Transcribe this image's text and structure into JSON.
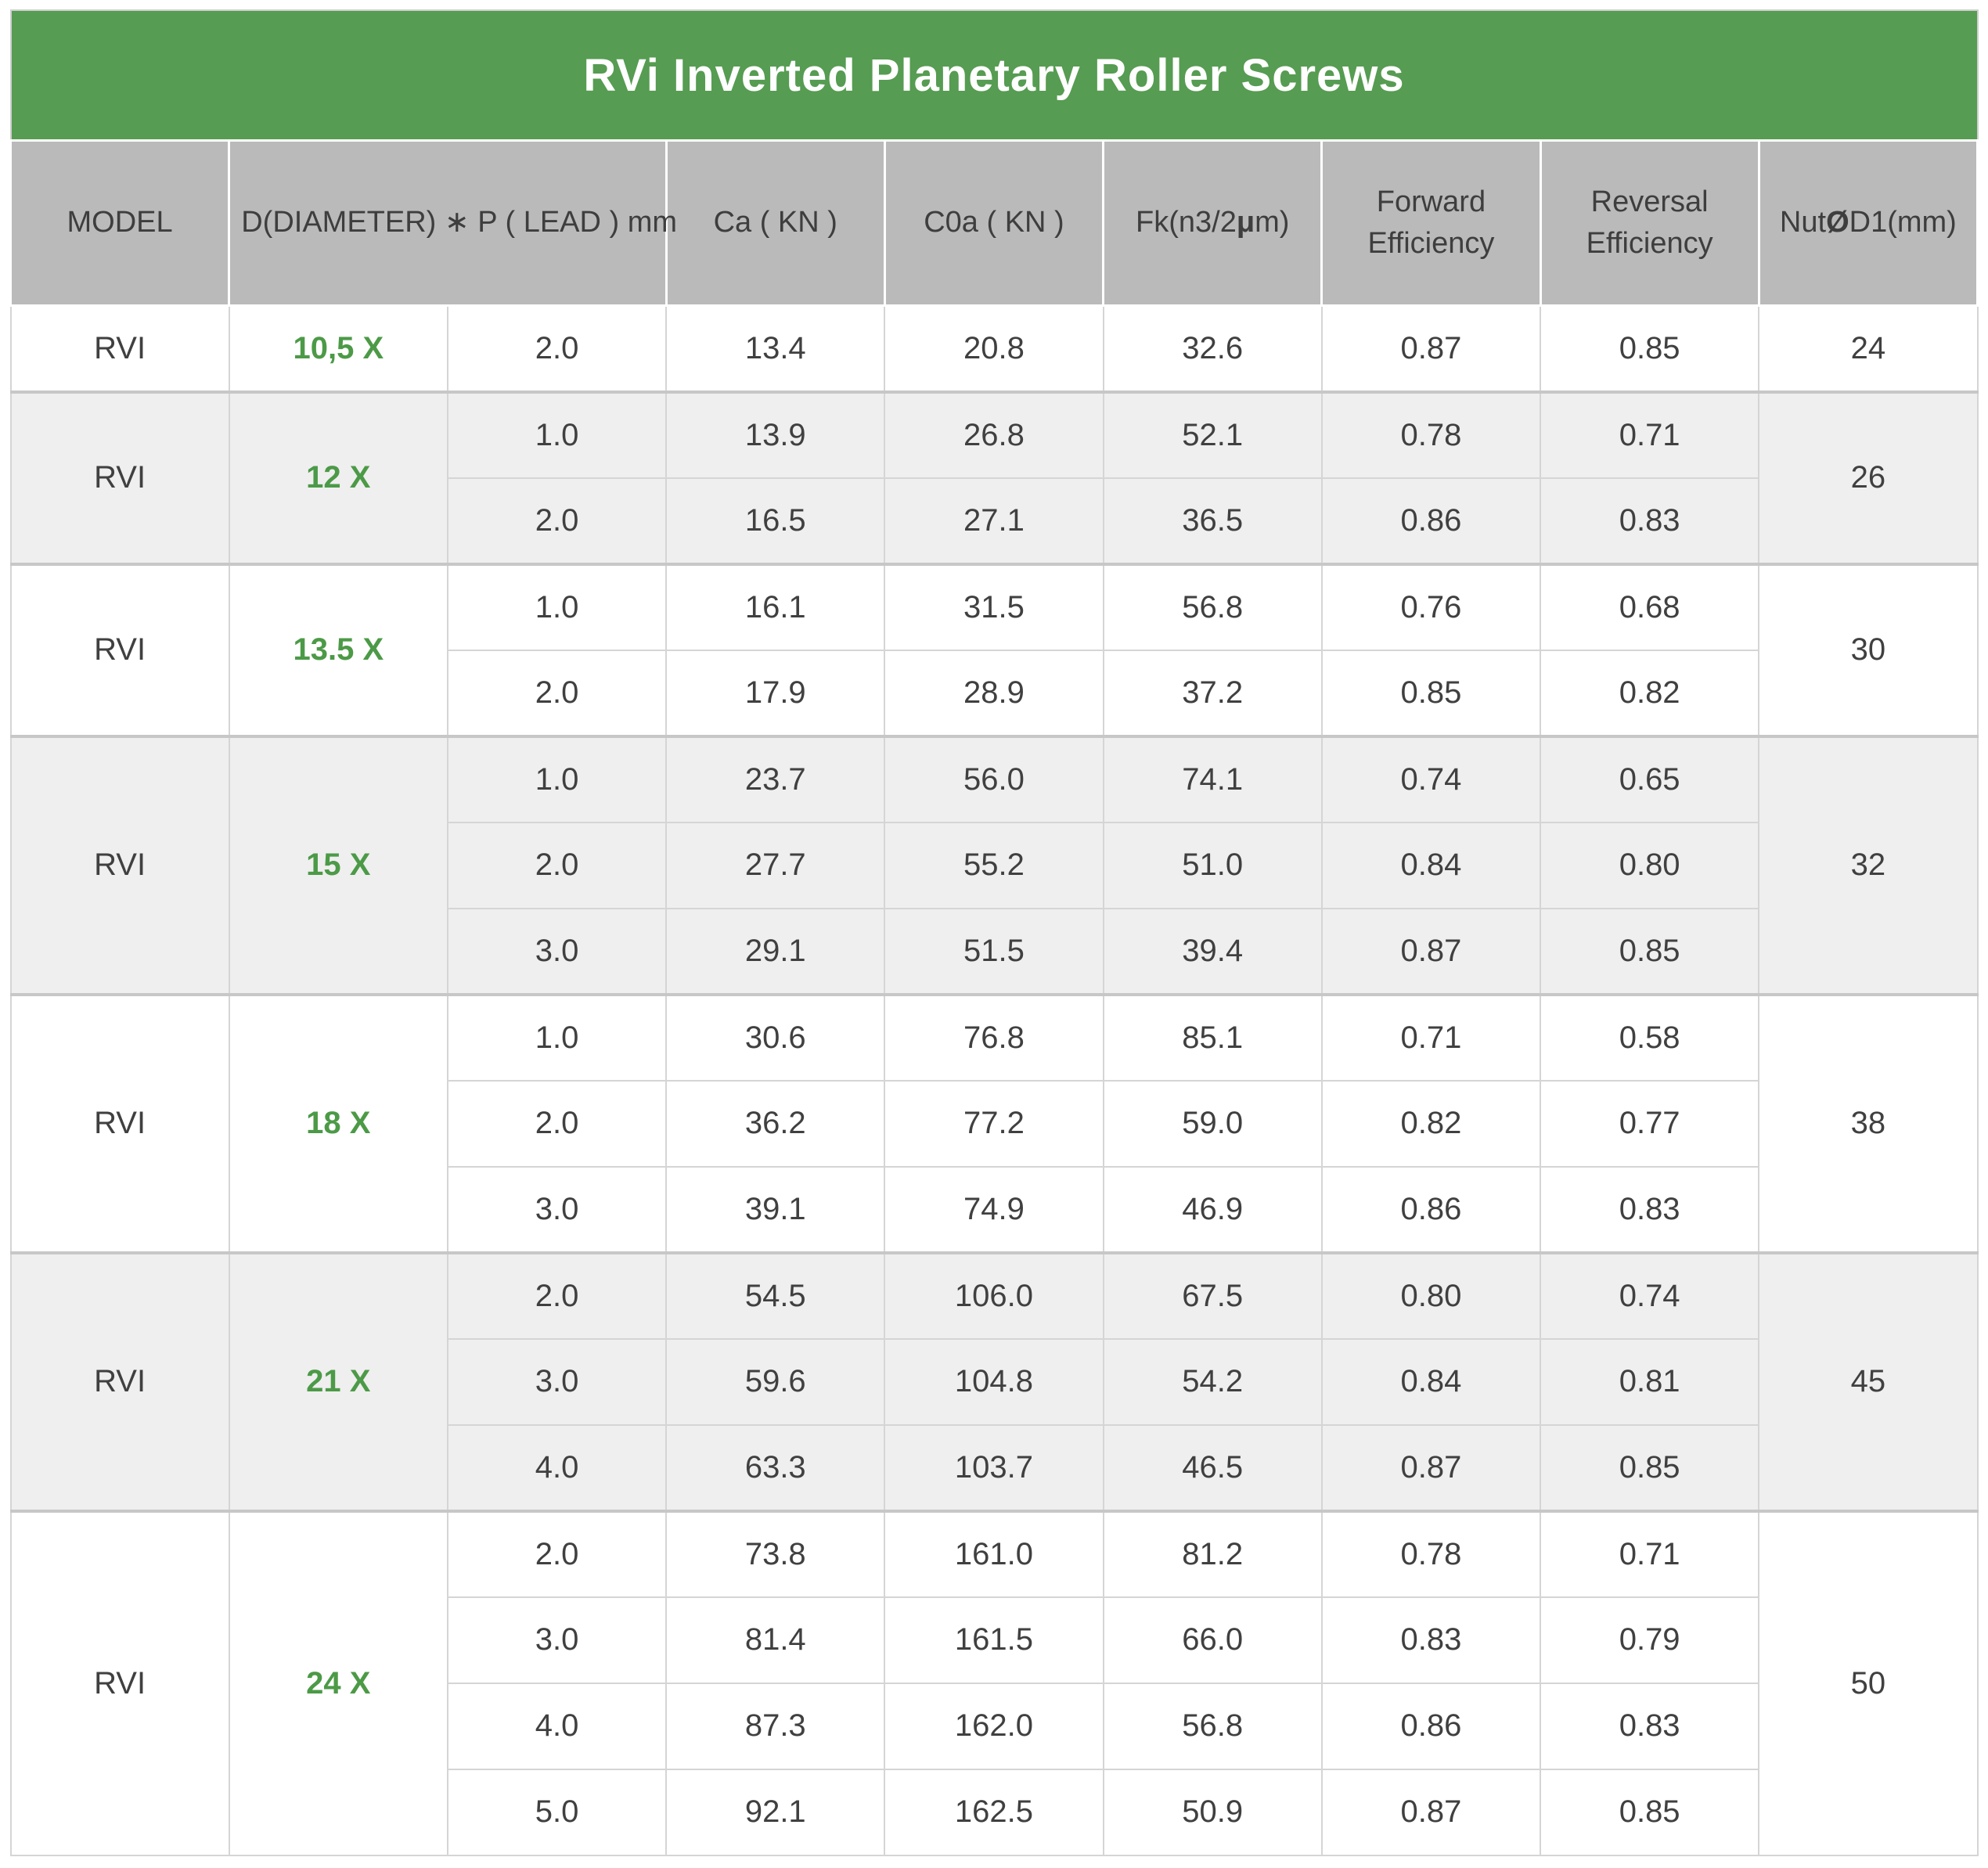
{
  "title": "RVi Inverted Planetary Roller Screws",
  "header": {
    "model": "MODEL",
    "diameter_lead": "D(DIAMETER) ∗ P ( LEAD ) mm",
    "ca": "Ca ( KN )",
    "c0a": "C0a ( KN )",
    "fk_pre": "Fk(n3/2",
    "fk_mu": "μ",
    "fk_post": "m)",
    "forward": "Forward Efficiency",
    "reversal": "Reversal Efficiency",
    "nut_pre": "Nut",
    "nut_o": "Ø",
    "nut_post": "D1(mm)"
  },
  "colors": {
    "title_bar_green": "#569C52",
    "size_text_green": "#4C9A47",
    "header_bg_gray": "#BABABA",
    "alt_row_bg": "#EFEFEF"
  },
  "groups": [
    {
      "model": "RVI",
      "size": "10,5 X",
      "nut": "24",
      "rows": [
        {
          "lead": "2.0",
          "ca": "13.4",
          "c0a": "20.8",
          "fk": "32.6",
          "fwd": "0.87",
          "rev": "0.85"
        }
      ]
    },
    {
      "model": "RVI",
      "size": "12 X",
      "nut": "26",
      "rows": [
        {
          "lead": "1.0",
          "ca": "13.9",
          "c0a": "26.8",
          "fk": "52.1",
          "fwd": "0.78",
          "rev": "0.71"
        },
        {
          "lead": "2.0",
          "ca": "16.5",
          "c0a": "27.1",
          "fk": "36.5",
          "fwd": "0.86",
          "rev": "0.83"
        }
      ]
    },
    {
      "model": "RVI",
      "size": "13.5 X",
      "nut": "30",
      "rows": [
        {
          "lead": "1.0",
          "ca": "16.1",
          "c0a": "31.5",
          "fk": "56.8",
          "fwd": "0.76",
          "rev": "0.68"
        },
        {
          "lead": "2.0",
          "ca": "17.9",
          "c0a": "28.9",
          "fk": "37.2",
          "fwd": "0.85",
          "rev": "0.82"
        }
      ]
    },
    {
      "model": "RVI",
      "size": "15 X",
      "nut": "32",
      "rows": [
        {
          "lead": "1.0",
          "ca": "23.7",
          "c0a": "56.0",
          "fk": "74.1",
          "fwd": "0.74",
          "rev": "0.65"
        },
        {
          "lead": "2.0",
          "ca": "27.7",
          "c0a": "55.2",
          "fk": "51.0",
          "fwd": "0.84",
          "rev": "0.80"
        },
        {
          "lead": "3.0",
          "ca": "29.1",
          "c0a": "51.5",
          "fk": "39.4",
          "fwd": "0.87",
          "rev": "0.85"
        }
      ]
    },
    {
      "model": "RVI",
      "size": "18 X",
      "nut": "38",
      "rows": [
        {
          "lead": "1.0",
          "ca": "30.6",
          "c0a": "76.8",
          "fk": "85.1",
          "fwd": "0.71",
          "rev": "0.58"
        },
        {
          "lead": "2.0",
          "ca": "36.2",
          "c0a": "77.2",
          "fk": "59.0",
          "fwd": "0.82",
          "rev": "0.77"
        },
        {
          "lead": "3.0",
          "ca": "39.1",
          "c0a": "74.9",
          "fk": "46.9",
          "fwd": "0.86",
          "rev": "0.83"
        }
      ]
    },
    {
      "model": "RVI",
      "size": "21 X",
      "nut": "45",
      "rows": [
        {
          "lead": "2.0",
          "ca": "54.5",
          "c0a": "106.0",
          "fk": "67.5",
          "fwd": "0.80",
          "rev": "0.74"
        },
        {
          "lead": "3.0",
          "ca": "59.6",
          "c0a": "104.8",
          "fk": "54.2",
          "fwd": "0.84",
          "rev": "0.81"
        },
        {
          "lead": "4.0",
          "ca": "63.3",
          "c0a": "103.7",
          "fk": "46.5",
          "fwd": "0.87",
          "rev": "0.85"
        }
      ]
    },
    {
      "model": "RVI",
      "size": "24 X",
      "nut": "50",
      "rows": [
        {
          "lead": "2.0",
          "ca": "73.8",
          "c0a": "161.0",
          "fk": "81.2",
          "fwd": "0.78",
          "rev": "0.71"
        },
        {
          "lead": "3.0",
          "ca": "81.4",
          "c0a": "161.5",
          "fk": "66.0",
          "fwd": "0.83",
          "rev": "0.79"
        },
        {
          "lead": "4.0",
          "ca": "87.3",
          "c0a": "162.0",
          "fk": "56.8",
          "fwd": "0.86",
          "rev": "0.83"
        },
        {
          "lead": "5.0",
          "ca": "92.1",
          "c0a": "162.5",
          "fk": "50.9",
          "fwd": "0.87",
          "rev": "0.85"
        }
      ]
    }
  ]
}
